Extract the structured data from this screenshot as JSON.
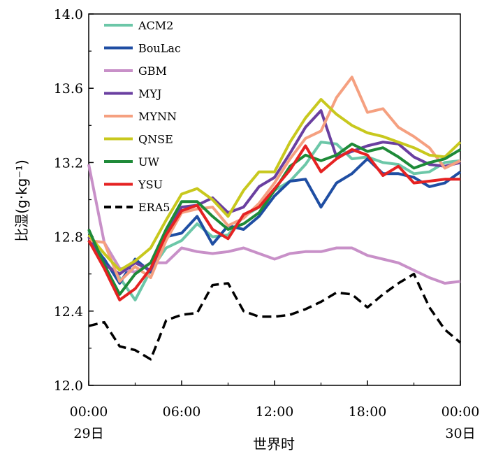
{
  "chart_data": {
    "type": "line",
    "ylabel": "比湿(g·kg⁻¹)",
    "xlabel": "世界时",
    "ylim": [
      12.0,
      14.0
    ],
    "xlim": [
      0,
      24
    ],
    "yticks": [
      "12.0",
      "12.4",
      "12.8",
      "13.2",
      "13.6",
      "14.0"
    ],
    "xticks": [
      {
        "x": 0,
        "label": "00:00",
        "sublabel": "29日"
      },
      {
        "x": 6,
        "label": "06:00",
        "sublabel": ""
      },
      {
        "x": 12,
        "label": "12:00",
        "sublabel": ""
      },
      {
        "x": 18,
        "label": "18:00",
        "sublabel": ""
      },
      {
        "x": 24,
        "label": "00:00",
        "sublabel": "30日"
      }
    ],
    "legend_position": "top-left",
    "grid": false,
    "x": [
      0,
      1,
      2,
      3,
      4,
      5,
      6,
      7,
      8,
      9,
      10,
      11,
      12,
      13,
      14,
      15,
      16,
      17,
      18,
      19,
      20,
      21,
      22,
      23,
      24
    ],
    "series": [
      {
        "name": "ACM2",
        "color": "#6cc7a8",
        "dash": "solid",
        "values": [
          12.83,
          12.67,
          12.58,
          12.46,
          12.62,
          12.74,
          12.78,
          12.87,
          12.8,
          12.81,
          12.91,
          12.96,
          13.05,
          13.1,
          13.19,
          13.31,
          13.3,
          13.22,
          13.23,
          13.2,
          13.19,
          13.14,
          13.15,
          13.2,
          13.21
        ]
      },
      {
        "name": "BouLac",
        "color": "#1f4ea3",
        "dash": "solid",
        "values": [
          12.78,
          12.68,
          12.55,
          12.68,
          12.61,
          12.8,
          12.82,
          12.91,
          12.76,
          12.86,
          12.84,
          12.91,
          13.02,
          13.1,
          13.11,
          12.96,
          13.09,
          13.14,
          13.22,
          13.14,
          13.14,
          13.12,
          13.07,
          13.09,
          13.15
        ]
      },
      {
        "name": "GBM",
        "color": "#c890c8",
        "dash": "solid",
        "values": [
          13.19,
          12.77,
          12.63,
          12.61,
          12.66,
          12.66,
          12.74,
          12.72,
          12.71,
          12.72,
          12.74,
          12.71,
          12.68,
          12.71,
          12.72,
          12.72,
          12.74,
          12.74,
          12.7,
          12.68,
          12.66,
          12.62,
          12.58,
          12.55,
          12.56
        ]
      },
      {
        "name": "MYJ",
        "color": "#6a3fa0",
        "dash": "solid",
        "values": [
          12.8,
          12.65,
          12.6,
          12.66,
          12.62,
          12.82,
          12.96,
          12.97,
          13.01,
          12.93,
          12.96,
          13.07,
          13.12,
          13.25,
          13.39,
          13.48,
          13.23,
          13.26,
          13.29,
          13.31,
          13.3,
          13.23,
          13.19,
          13.18,
          13.2
        ]
      },
      {
        "name": "MYNN",
        "color": "#f5a080",
        "dash": "solid",
        "values": [
          12.78,
          12.77,
          12.56,
          12.64,
          12.58,
          12.78,
          12.93,
          12.95,
          12.96,
          12.86,
          12.9,
          12.98,
          13.09,
          13.22,
          13.33,
          13.37,
          13.55,
          13.66,
          13.47,
          13.49,
          13.39,
          13.34,
          13.28,
          13.17,
          13.21
        ]
      },
      {
        "name": "QNSE",
        "color": "#c8c81e",
        "dash": "solid",
        "values": [
          12.81,
          12.71,
          12.62,
          12.67,
          12.74,
          12.89,
          13.03,
          13.06,
          13.0,
          12.91,
          13.05,
          13.15,
          13.15,
          13.31,
          13.44,
          13.54,
          13.46,
          13.4,
          13.36,
          13.34,
          13.31,
          13.28,
          13.24,
          13.23,
          13.31
        ]
      },
      {
        "name": "UW",
        "color": "#1e8a38",
        "dash": "solid",
        "values": [
          12.84,
          12.65,
          12.49,
          12.6,
          12.66,
          12.84,
          12.99,
          12.99,
          12.91,
          12.84,
          12.87,
          12.93,
          13.05,
          13.18,
          13.24,
          13.21,
          13.24,
          13.3,
          13.26,
          13.28,
          13.23,
          13.17,
          13.2,
          13.22,
          13.27
        ]
      },
      {
        "name": "YSU",
        "color": "#e52222",
        "dash": "solid",
        "values": [
          12.78,
          12.63,
          12.46,
          12.52,
          12.63,
          12.81,
          12.94,
          12.97,
          12.84,
          12.79,
          12.92,
          12.96,
          13.06,
          13.16,
          13.29,
          13.15,
          13.22,
          13.27,
          13.24,
          13.13,
          13.18,
          13.09,
          13.1,
          13.11,
          13.11
        ]
      },
      {
        "name": "ERA5",
        "color": "#000000",
        "dash": "dashed",
        "values": [
          12.32,
          12.34,
          12.21,
          12.19,
          12.14,
          12.35,
          12.38,
          12.39,
          12.54,
          12.55,
          12.4,
          12.37,
          12.37,
          12.38,
          12.41,
          12.45,
          12.5,
          12.49,
          12.42,
          12.49,
          12.55,
          12.6,
          12.42,
          12.3,
          12.23
        ]
      }
    ]
  }
}
